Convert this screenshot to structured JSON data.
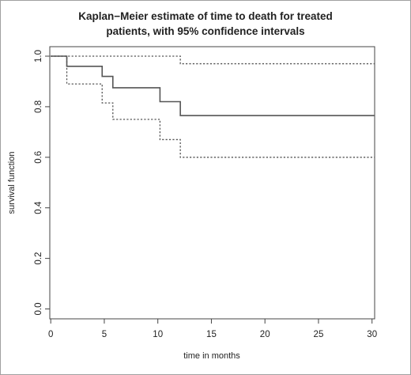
{
  "chart_data": {
    "type": "line",
    "title_lines": [
      "Kaplan−Meier estimate of time to death for treated",
      "patients, with 95% confidence intervals"
    ],
    "xlabel": "time in months",
    "ylabel": "survival function",
    "xlim": [
      0,
      30
    ],
    "ylim": [
      0,
      1
    ],
    "x_ticks": [
      0,
      5,
      10,
      15,
      20,
      25,
      30
    ],
    "x_tick_labels": [
      "0",
      "5",
      "10",
      "15",
      "20",
      "25",
      "30"
    ],
    "y_ticks": [
      0.0,
      0.2,
      0.4,
      0.6,
      0.8,
      1.0
    ],
    "y_tick_labels": [
      "0.0",
      "0.2",
      "0.4",
      "0.6",
      "0.8",
      "1.0"
    ],
    "grid": false,
    "series": [
      {
        "style": "solid",
        "step_x": [
          0,
          1.5,
          4.8,
          5.8,
          10.2,
          12.1,
          30.2
        ],
        "step_y": [
          1.0,
          0.96,
          0.92,
          0.875,
          0.82,
          0.765,
          0.765
        ]
      },
      {
        "style": "dotted",
        "step_x": [
          0,
          12.1,
          30.2
        ],
        "step_y": [
          1.0,
          0.97,
          0.97
        ]
      },
      {
        "style": "dotted",
        "step_x": [
          0,
          1.5,
          4.8,
          5.8,
          10.2,
          12.1,
          30.2
        ],
        "step_y": [
          1.0,
          0.89,
          0.815,
          0.75,
          0.67,
          0.6,
          0.6
        ]
      }
    ],
    "colors": {
      "line": "#555555",
      "axis": "#444444"
    }
  }
}
